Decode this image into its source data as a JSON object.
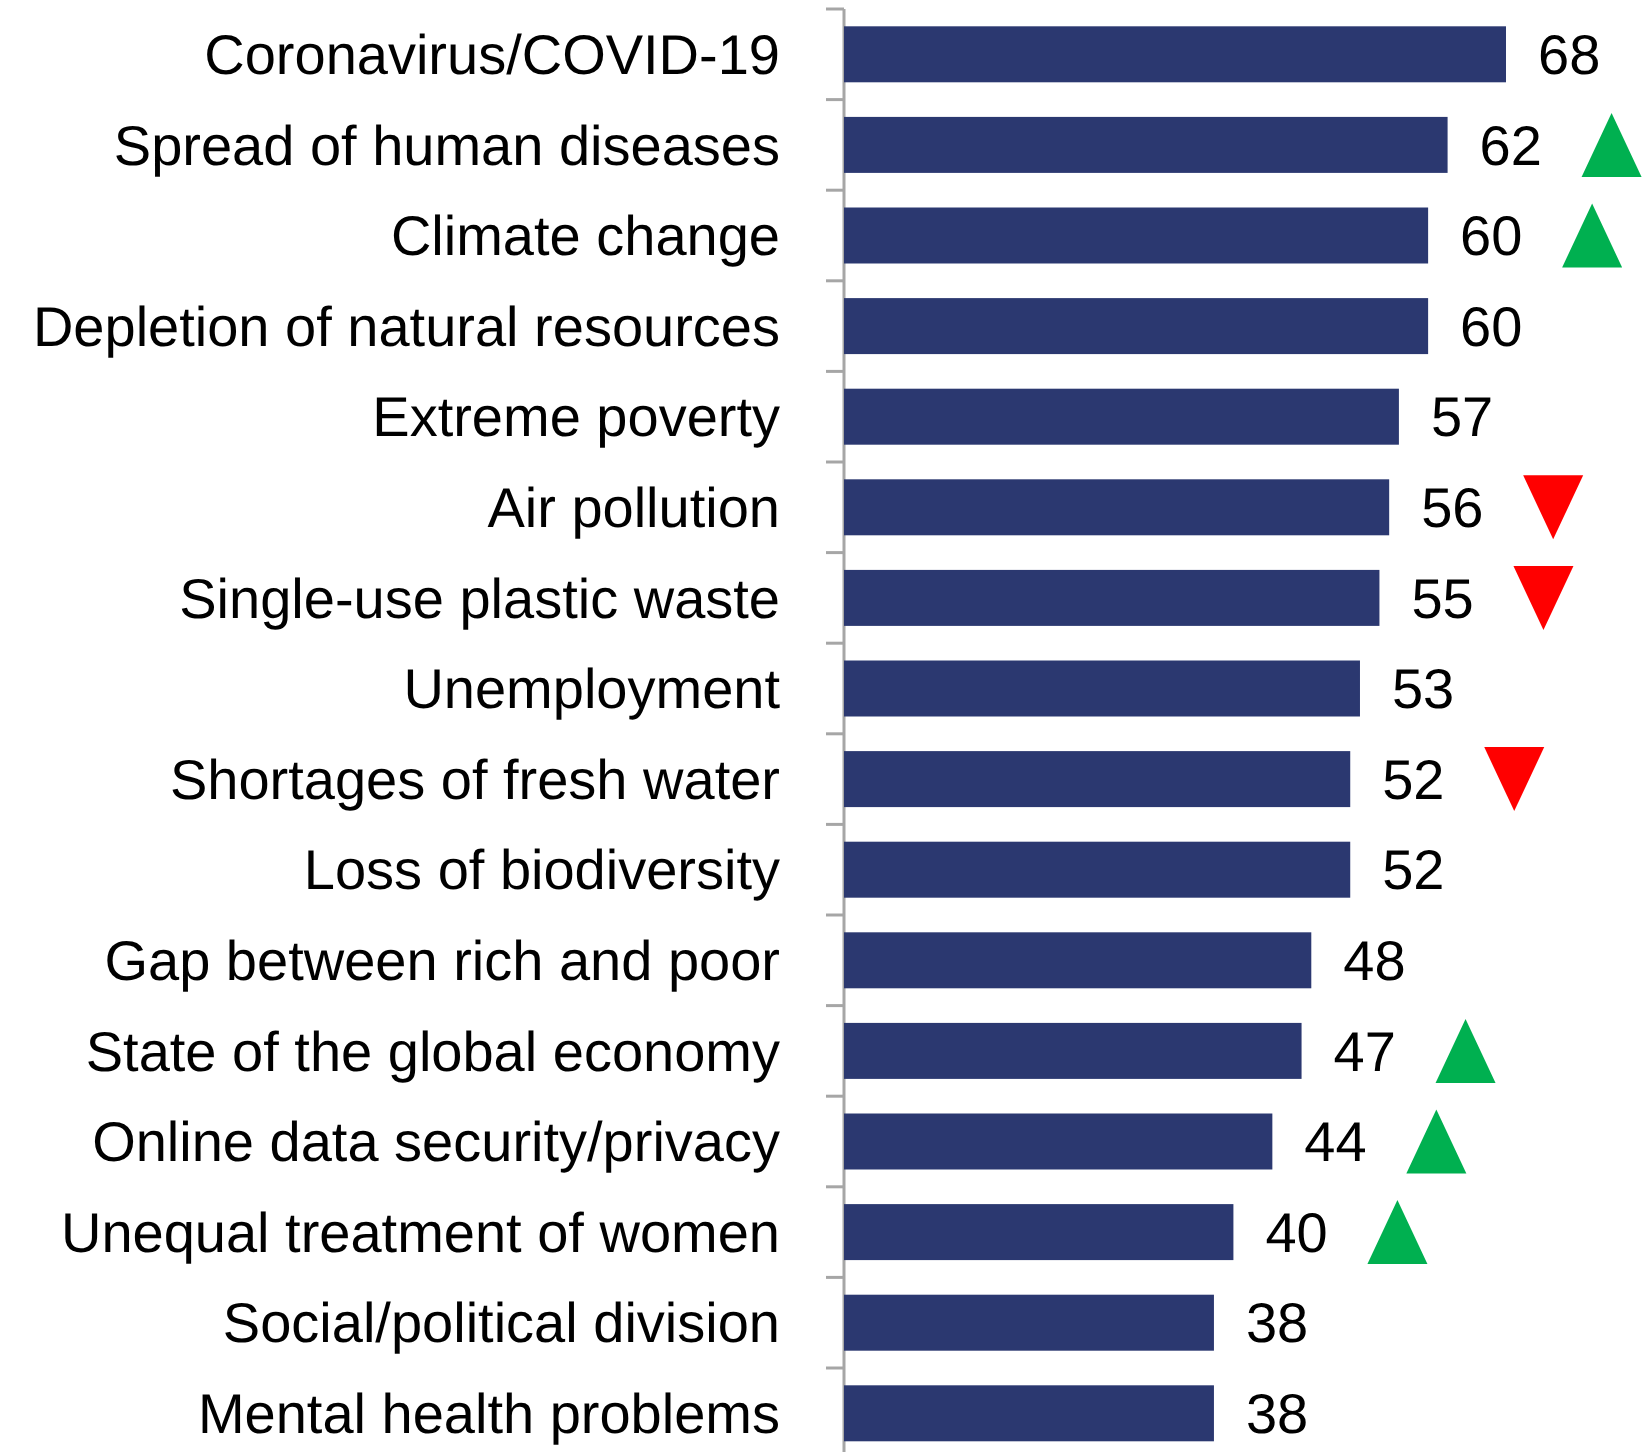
{
  "chart_data": {
    "type": "bar",
    "orientation": "horizontal",
    "color": "#2b3870",
    "data_labels": true,
    "categories": [
      "Coronavirus/COVID-19",
      "Spread of human diseases",
      "Climate change",
      "Depletion of natural resources",
      "Extreme poverty",
      "Air pollution",
      "Single-use plastic waste",
      "Unemployment",
      "Shortages of fresh water",
      "Loss of biodiversity",
      "Gap between rich and poor",
      "State of the global economy",
      "Online data security/privacy",
      "Unequal treatment of women",
      "Social/political division",
      "Mental health problems"
    ],
    "values": [
      68,
      62,
      60,
      60,
      57,
      56,
      55,
      53,
      52,
      52,
      48,
      47,
      44,
      40,
      38,
      38
    ]
  }
}
